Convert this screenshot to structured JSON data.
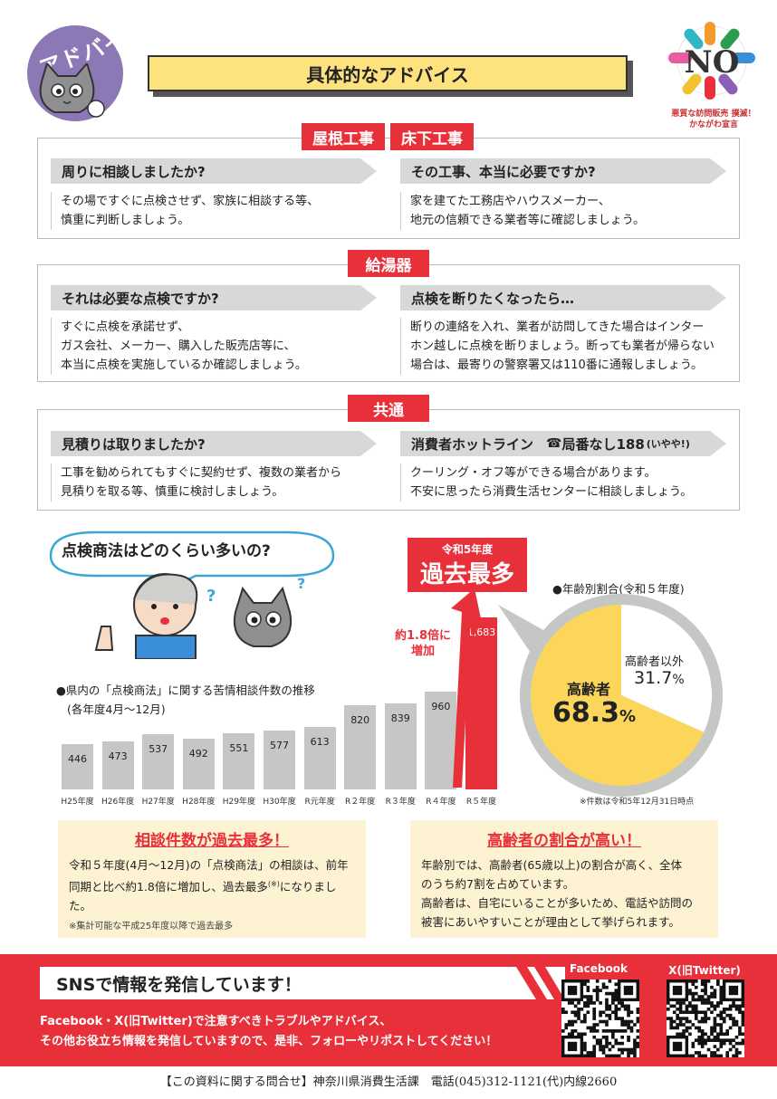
{
  "header": {
    "badge": "アドバイス",
    "title": "具体的なアドバイス",
    "logo_text": "NO",
    "logo_caption_1": "悪質な訪問販売 撲滅！",
    "logo_caption_2": "かながわ宣言"
  },
  "sections": [
    {
      "tags": [
        "屋根工事",
        "床下工事"
      ],
      "items": [
        {
          "heading": "周りに相談しましたか?",
          "lines": [
            "その場ですぐに点検させず、家族に相談する等、",
            "慎重に判断しましょう。"
          ]
        },
        {
          "heading": "その工事、本当に必要ですか?",
          "lines": [
            "家を建てた工務店やハウスメーカー、",
            "地元の信頼できる業者等に確認しましょう。"
          ]
        }
      ]
    },
    {
      "tags": [
        "給湯器"
      ],
      "items": [
        {
          "heading": "それは必要な点検ですか?",
          "lines": [
            "すぐに点検を承諾せず、",
            "ガス会社、メーカー、購入した販売店等に、",
            "本当に点検を実施しているか確認しましょう。"
          ]
        },
        {
          "heading": "点検を断りたくなったら…",
          "lines": [
            "断りの連絡を入れ、業者が訪問してきた場合はインター",
            "ホン越しに点検を断りましょう。断っても業者が帰らない",
            "場合は、最寄りの警察署又は110番に通報しましょう。"
          ]
        }
      ]
    },
    {
      "tags": [
        "共通"
      ],
      "items": [
        {
          "heading": "見積りは取りましたか?",
          "lines": [
            "工事を勧められてもすぐに契約せず、複数の業者から",
            "見積りを取る等、慎重に検討しましょう。"
          ]
        },
        {
          "heading": "消費者ホットライン",
          "heading_extra": "局番なし188",
          "heading_small": "(いやや!)",
          "lines": [
            "クーリング・オフ等ができる場合があります。",
            "不安に思ったら消費生活センターに相談しましょう。"
          ]
        }
      ]
    }
  ],
  "chart_area": {
    "question": "点検商法はどのくらい多いの?",
    "record_small": "令和5年度",
    "record_big": "過去最多",
    "increase_1": "約1.8倍に",
    "increase_2": "増加",
    "note": "※件数は令和5年12月31日時点"
  },
  "chart_data": [
    {
      "type": "bar",
      "title": "●県内の「点検商法」に関する苦情相談件数の推移",
      "subtitle": "(各年度4月～12月)",
      "categories": [
        "H25年度",
        "H26年度",
        "H27年度",
        "H28年度",
        "H29年度",
        "H30年度",
        "R元年度",
        "R２年度",
        "R３年度",
        "R４年度",
        "R５年度"
      ],
      "values": [
        446,
        473,
        537,
        492,
        551,
        577,
        613,
        820,
        839,
        960,
        1683
      ],
      "value_labels": [
        "446",
        "473",
        "537",
        "492",
        "551",
        "577",
        "613",
        "820",
        "839",
        "960",
        "1,683"
      ],
      "highlight_color": "#e8303a",
      "bar_color": "#c4c7c3"
    },
    {
      "type": "pie",
      "title": "●年齢別割合(令和５年度)",
      "slices": [
        {
          "name": "高齢者",
          "value": 68.3,
          "label": "68.3",
          "color": "#fcd65a"
        },
        {
          "name": "高齢者以外",
          "value": 31.7,
          "label": "31.7",
          "color": "#ffffff"
        }
      ],
      "unit": "%"
    }
  ],
  "info_left": {
    "title": "相談件数が過去最多！",
    "line1": "令和５年度(4月～12月)の「点検商法」の相談は、前年",
    "line2a": "同期と比べ約1.8倍に増加し、過去最多",
    "line2sup": "(※)",
    "line2b": "になりました。",
    "note": "※集計可能な平成25年度以降で過去最多"
  },
  "info_right": {
    "title": "高齢者の割合が高い！",
    "lines": [
      "年齢別では、高齢者(65歳以上)の割合が高く、全体",
      "のうち約7割を占めています。",
      "高齢者は、自宅にいることが多いため、電話や訪問の",
      "被害にあいやすいことが理由として挙げられます。"
    ]
  },
  "sns": {
    "title": "SNSで情報を発信しています！",
    "line1": "Facebook・X(旧Twitter)で注意すべきトラブルやアドバイス、",
    "line2": "その他お役立ち情報を発信していますので、是非、フォローやリポストしてください！",
    "facebook_label": "Facebook",
    "x_label": "X(旧Twitter)"
  },
  "contact": "【この資料に関する問合せ】神奈川県消費生活課　電話(045)312-1121(代)内線2660"
}
